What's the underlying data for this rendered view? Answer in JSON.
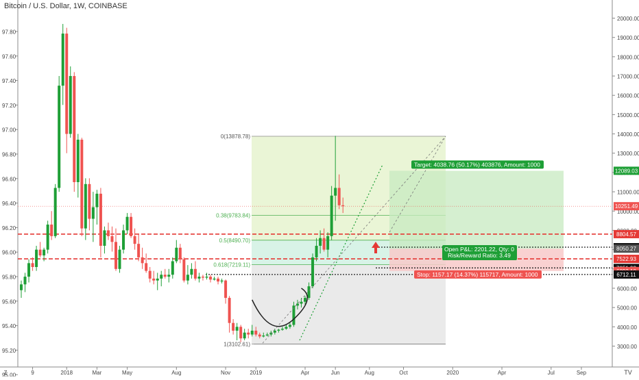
{
  "title": "Bitcoin / U.S. Dollar, 1W, COINBASE",
  "logo_text": "TV",
  "timezone_marker": "Z",
  "colors": {
    "up": "#26a69a",
    "up_bar": "#1e9f36",
    "down": "#ef5350",
    "target_zone": "#c7e9c0",
    "stop_zone": "#f8c9c9",
    "red_line": "#e53935",
    "dark_line": "#222222",
    "fib_bg_top": "#e6f3cf",
    "fib_bg_mid": "#d4f2e4",
    "fib_bg_low": "#e8e8e8"
  },
  "chart_data": {
    "type": "candlestick",
    "price_scale": {
      "ticks": [
        3000,
        4000,
        5000,
        6000,
        7000,
        8000,
        9000,
        10000,
        11000,
        12000,
        13000,
        14000,
        15000,
        16000,
        17000,
        18000,
        19000,
        20000
      ],
      "labels": [
        "3000.00",
        "4000.00",
        "5000.00",
        "6000.00",
        "7000.00",
        "8000.00",
        "9000.00",
        "10000.00",
        "11000.00",
        "12000.00",
        "13000.00",
        "14000.00",
        "15000.00",
        "16000.00",
        "17000.00",
        "18000.00",
        "19000.00",
        "20000.00"
      ]
    },
    "left_scale": {
      "labels": [
        "97.80",
        "97.60",
        "97.40",
        "97.20",
        "97.00",
        "96.80",
        "96.60",
        "96.40",
        "96.20",
        "96.00",
        "95.80",
        "95.60",
        "95.40",
        "95.20",
        "95.00"
      ]
    },
    "time_labels": [
      {
        "label": "9",
        "index": 3
      },
      {
        "label": "2018",
        "index": 12
      },
      {
        "label": "Mar",
        "index": 20
      },
      {
        "label": "May",
        "index": 28
      },
      {
        "label": "Aug",
        "index": 41
      },
      {
        "label": "Nov",
        "index": 54
      },
      {
        "label": "2019",
        "index": 62
      },
      {
        "label": "Apr",
        "index": 75
      },
      {
        "label": "Jun",
        "index": 83
      },
      {
        "label": "Aug",
        "index": 92
      },
      {
        "label": "Oct",
        "index": 101
      },
      {
        "label": "2020",
        "index": 114
      },
      {
        "label": "Apr",
        "index": 127
      },
      {
        "label": "Jul",
        "index": 140
      },
      {
        "label": "Sep",
        "index": 148
      }
    ],
    "candles": [
      [
        5900,
        6400,
        5500,
        6200
      ],
      [
        6200,
        6800,
        5800,
        6600
      ],
      [
        6600,
        7500,
        6300,
        7300
      ],
      [
        7300,
        7600,
        6900,
        7100
      ],
      [
        7100,
        8200,
        6900,
        8000
      ],
      [
        8000,
        8400,
        7600,
        7700
      ],
      [
        7700,
        8100,
        7400,
        8000
      ],
      [
        8000,
        9500,
        7800,
        9300
      ],
      [
        9300,
        10000,
        8500,
        8700
      ],
      [
        8700,
        11400,
        8600,
        11200
      ],
      [
        11200,
        17000,
        11000,
        16500
      ],
      [
        16500,
        19700,
        15500,
        19200
      ],
      [
        19200,
        19500,
        13000,
        14000
      ],
      [
        14000,
        17500,
        13800,
        17000
      ],
      [
        17000,
        17200,
        11000,
        11500
      ],
      [
        11500,
        14000,
        10700,
        13700
      ],
      [
        13700,
        13800,
        8700,
        9100
      ],
      [
        9100,
        11700,
        8500,
        11400
      ],
      [
        11400,
        11700,
        9000,
        9600
      ],
      [
        9600,
        11000,
        8400,
        10200
      ],
      [
        10200,
        11100,
        9300,
        10900
      ],
      [
        10900,
        11200,
        7600,
        8200
      ],
      [
        8200,
        9200,
        7800,
        9000
      ],
      [
        9000,
        9400,
        8500,
        8700
      ],
      [
        8700,
        9200,
        7900,
        8400
      ],
      [
        8400,
        9100,
        6900,
        7000
      ],
      [
        7000,
        8200,
        6800,
        8000
      ],
      [
        8000,
        9300,
        7800,
        9000
      ],
      [
        9000,
        9900,
        8800,
        9700
      ],
      [
        9700,
        9900,
        8600,
        8700
      ],
      [
        8700,
        9100,
        8000,
        8300
      ],
      [
        8300,
        8800,
        7400,
        7600
      ],
      [
        7600,
        8100,
        7000,
        7300
      ],
      [
        7300,
        7800,
        6800,
        6900
      ],
      [
        6900,
        7100,
        6300,
        6500
      ],
      [
        6500,
        6900,
        6200,
        6400
      ],
      [
        6400,
        6800,
        5900,
        6500
      ],
      [
        6500,
        6900,
        6100,
        6700
      ],
      [
        6700,
        7000,
        6500,
        6600
      ],
      [
        6600,
        7000,
        6300,
        6700
      ],
      [
        6700,
        7600,
        6500,
        7400
      ],
      [
        7400,
        8500,
        7300,
        8100
      ],
      [
        8100,
        8300,
        7300,
        7500
      ],
      [
        7500,
        7600,
        6300,
        6400
      ],
      [
        6400,
        7200,
        6200,
        6700
      ],
      [
        6700,
        7300,
        6500,
        7000
      ],
      [
        7000,
        7400,
        6400,
        6500
      ],
      [
        6500,
        6800,
        6300,
        6600
      ],
      [
        6600,
        6700,
        6400,
        6550
      ],
      [
        6550,
        6800,
        6450,
        6600
      ],
      [
        6600,
        6700,
        6300,
        6450
      ],
      [
        6450,
        6600,
        6400,
        6500
      ],
      [
        6500,
        6600,
        6200,
        6350
      ],
      [
        6350,
        6500,
        6250,
        6400
      ],
      [
        6400,
        6450,
        5200,
        5500
      ],
      [
        5500,
        5600,
        3700,
        4200
      ],
      [
        4200,
        4400,
        3600,
        3800
      ],
      [
        3800,
        4200,
        3300,
        4000
      ],
      [
        4000,
        4100,
        3200,
        3400
      ],
      [
        3400,
        3900,
        3300,
        3700
      ],
      [
        3700,
        3900,
        3400,
        3600
      ],
      [
        3600,
        4100,
        3500,
        3800
      ],
      [
        3800,
        4000,
        3500,
        3600
      ],
      [
        3600,
        3700,
        3400,
        3500
      ],
      [
        3500,
        3700,
        3450,
        3550
      ],
      [
        3550,
        3700,
        3500,
        3600
      ],
      [
        3600,
        3800,
        3500,
        3700
      ],
      [
        3700,
        3900,
        3600,
        3800
      ],
      [
        3800,
        3900,
        3700,
        3850
      ],
      [
        3850,
        4000,
        3800,
        3900
      ],
      [
        3900,
        4100,
        3850,
        4000
      ],
      [
        4000,
        4200,
        3900,
        4100
      ],
      [
        4100,
        5300,
        4000,
        5100
      ],
      [
        5100,
        5400,
        4900,
        5200
      ],
      [
        5200,
        5500,
        5000,
        5300
      ],
      [
        5300,
        5600,
        5100,
        5500
      ],
      [
        5500,
        6300,
        5400,
        6100
      ],
      [
        6100,
        7800,
        6000,
        7600
      ],
      [
        7600,
        8600,
        7400,
        8200
      ],
      [
        8200,
        9000,
        7800,
        8600
      ],
      [
        8600,
        9100,
        7900,
        8000
      ],
      [
        8000,
        8900,
        7600,
        8700
      ],
      [
        8700,
        11300,
        8500,
        10800
      ],
      [
        10800,
        13900,
        9500,
        11200
      ],
      [
        11200,
        11900,
        10100,
        10300
      ],
      [
        10300,
        10700,
        9900,
        10251
      ]
    ]
  },
  "fib": {
    "levels": [
      {
        "label": "0(13878.78)",
        "value": 13878.78
      },
      {
        "label": "0.38(9783.84)",
        "value": 9783.84
      },
      {
        "label": "0.5(8490.70)",
        "value": 8490.7
      },
      {
        "label": "0.618(7219.11)",
        "value": 7219.11
      },
      {
        "label": "1(3102.61)",
        "value": 3102.61
      }
    ]
  },
  "position": {
    "target_label": "Target: 4038.76 (50.17%) 403876, Amount: 1000",
    "stop_label": "Stop: 1157.17 (14.37%) 115717, Amount: 1000",
    "pnl_line1": "Open P&L: 2201.22, Qty: 0",
    "pnl_line2": "Risk/Reward Ratio: 3.49",
    "target_price": 12089.03,
    "entry_price": 8050.27,
    "stop_price": 6893.1
  },
  "horizontal_lines": {
    "red": [
      8804.57,
      7522.93
    ],
    "dark": [
      8127.98,
      7051.93,
      6712.11
    ]
  },
  "price_tags": [
    {
      "label": "12089.03",
      "value": 12089.03,
      "color": "#1e9f36"
    },
    {
      "label": "10251.49",
      "value": 10251.49,
      "color": "#ef5350"
    },
    {
      "label": "8804.57",
      "value": 8804.57,
      "color": "#e53935"
    },
    {
      "label": "8127.98",
      "value": 8127.98,
      "color": "#111111"
    },
    {
      "label": "8050.27",
      "value": 8050.27,
      "color": "#555555"
    },
    {
      "label": "7522.93",
      "value": 7522.93,
      "color": "#e53935"
    },
    {
      "label": "7051.93",
      "value": 7051.93,
      "color": "#111111"
    },
    {
      "label": "6893.10",
      "value": 6893.1,
      "color": "#ef5350"
    },
    {
      "label": "6712.11",
      "value": 6712.11,
      "color": "#111111"
    }
  ]
}
